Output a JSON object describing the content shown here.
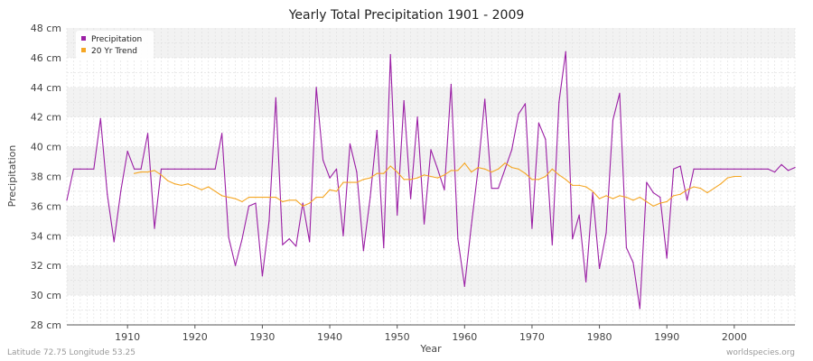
{
  "colors": {
    "precipitation": "#9b1fa5",
    "trend": "#f5a623",
    "band_light": "#f2f2f2",
    "grid": "#dddddd"
  },
  "footer": {
    "left": "Latitude 72.75 Longitude 53.25",
    "right": "worldspecies.org"
  },
  "chart_data": {
    "type": "line",
    "title": "Yearly Total Precipitation 1901 - 2009",
    "xlabel": "Year",
    "ylabel": "Precipitation",
    "xlim": [
      1901,
      2009
    ],
    "ylim": [
      28,
      48
    ],
    "x_ticks": [
      1910,
      1920,
      1930,
      1940,
      1950,
      1960,
      1970,
      1980,
      1990,
      2000
    ],
    "y_ticks": [
      28,
      30,
      32,
      34,
      36,
      38,
      40,
      42,
      44,
      46,
      48
    ],
    "y_tick_labels": [
      "28 cm",
      "30 cm",
      "32 cm",
      "34 cm",
      "36 cm",
      "38 cm",
      "40 cm",
      "42 cm",
      "44 cm",
      "46 cm",
      "48 cm"
    ],
    "legend": {
      "position": "top-left",
      "entries": [
        "Precipitation",
        "20 Yr Trend"
      ]
    },
    "series": [
      {
        "name": "Precipitation",
        "x_start": 1901,
        "values": [
          36.4,
          38.5,
          38.5,
          38.5,
          38.5,
          41.9,
          36.8,
          33.6,
          37.0,
          39.7,
          38.5,
          38.5,
          40.9,
          34.5,
          38.5,
          38.5,
          38.5,
          38.5,
          38.5,
          38.5,
          38.5,
          38.5,
          38.5,
          40.9,
          33.9,
          32.0,
          33.8,
          36.0,
          36.2,
          31.3,
          35.0,
          43.3,
          33.4,
          33.8,
          33.3,
          36.2,
          33.6,
          44.0,
          39.1,
          37.9,
          38.5,
          34.0,
          40.2,
          38.3,
          33.0,
          36.6,
          41.1,
          33.2,
          46.2,
          35.4,
          43.1,
          36.5,
          42.0,
          34.8,
          39.8,
          38.5,
          37.1,
          44.2,
          33.8,
          30.6,
          34.7,
          38.5,
          43.2,
          37.2,
          37.2,
          38.5,
          39.8,
          42.2,
          42.9,
          34.5,
          41.6,
          40.5,
          33.4,
          43.0,
          46.4,
          33.8,
          35.4,
          30.9,
          36.9,
          31.8,
          34.2,
          41.8,
          43.6,
          33.2,
          32.2,
          29.1,
          37.6,
          36.9,
          36.6,
          32.5,
          38.5,
          38.7,
          36.4,
          38.5,
          38.5,
          38.5,
          38.5,
          38.5,
          38.5,
          38.5,
          38.5,
          38.5,
          38.5,
          38.5,
          38.5,
          38.3,
          38.8,
          38.4,
          38.6
        ]
      },
      {
        "name": "20 Yr Trend",
        "x_start": 1911,
        "values": [
          38.2,
          38.3,
          38.3,
          38.4,
          38.1,
          37.7,
          37.5,
          37.4,
          37.5,
          37.3,
          37.1,
          37.3,
          37.0,
          36.7,
          36.6,
          36.5,
          36.3,
          36.6,
          36.6,
          36.6,
          36.6,
          36.6,
          36.3,
          36.4,
          36.4,
          36.0,
          36.2,
          36.6,
          36.6,
          37.1,
          37.0,
          37.6,
          37.6,
          37.6,
          37.8,
          37.9,
          38.2,
          38.2,
          38.7,
          38.3,
          37.8,
          37.8,
          37.9,
          38.1,
          38.0,
          37.9,
          38.1,
          38.4,
          38.4,
          38.9,
          38.3,
          38.6,
          38.5,
          38.3,
          38.5,
          38.9,
          38.6,
          38.5,
          38.2,
          37.8,
          37.8,
          38.0,
          38.5,
          38.1,
          37.8,
          37.4,
          37.4,
          37.3,
          37.0,
          36.5,
          36.7,
          36.5,
          36.7,
          36.6,
          36.4,
          36.6,
          36.3,
          36.0,
          36.2,
          36.3,
          36.7,
          36.8,
          37.1,
          37.3,
          37.2,
          36.9,
          37.2,
          37.5,
          37.9,
          38.0,
          38.0
        ]
      }
    ]
  }
}
